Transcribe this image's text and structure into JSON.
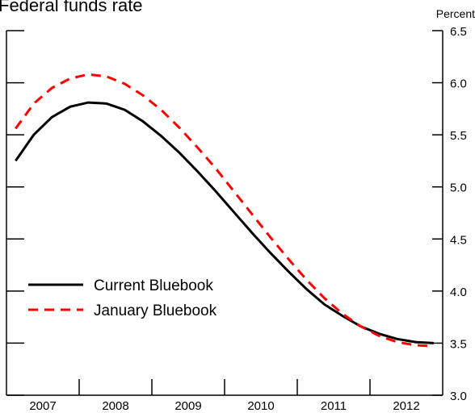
{
  "chart_data": {
    "type": "line",
    "title": "Federal funds rate",
    "y_unit_label": "Percent",
    "x": [
      2007.125,
      2007.375,
      2007.625,
      2007.875,
      2008.125,
      2008.375,
      2008.625,
      2008.875,
      2009.125,
      2009.375,
      2009.625,
      2009.875,
      2010.125,
      2010.375,
      2010.625,
      2010.875,
      2011.125,
      2011.375,
      2011.625,
      2011.875,
      2012.125,
      2012.375,
      2012.625,
      2012.875
    ],
    "xlim": [
      2007,
      2013
    ],
    "xticks": [
      {
        "value": 2007.5,
        "label": "2007"
      },
      {
        "value": 2008.5,
        "label": "2008"
      },
      {
        "value": 2009.5,
        "label": "2009"
      },
      {
        "value": 2010.5,
        "label": "2010"
      },
      {
        "value": 2011.5,
        "label": "2011"
      },
      {
        "value": 2012.5,
        "label": "2012"
      }
    ],
    "ylim": [
      3.0,
      6.5
    ],
    "yticks": [
      {
        "value": 3.0,
        "label": "3.0"
      },
      {
        "value": 3.5,
        "label": "3.5"
      },
      {
        "value": 4.0,
        "label": "4.0"
      },
      {
        "value": 4.5,
        "label": "4.5"
      },
      {
        "value": 5.0,
        "label": "5.0"
      },
      {
        "value": 5.5,
        "label": "5.5"
      },
      {
        "value": 6.0,
        "label": "6.0"
      },
      {
        "value": 6.5,
        "label": "6.5"
      }
    ],
    "series": [
      {
        "name": "Current Bluebook",
        "color": "#000000",
        "dash": false,
        "values": [
          5.25,
          5.5,
          5.67,
          5.77,
          5.81,
          5.8,
          5.74,
          5.63,
          5.49,
          5.33,
          5.15,
          4.96,
          4.76,
          4.56,
          4.37,
          4.19,
          4.02,
          3.87,
          3.76,
          3.66,
          3.59,
          3.54,
          3.51,
          3.5
        ]
      },
      {
        "name": "January Bluebook",
        "color": "#ff0000",
        "dash": true,
        "values": [
          5.56,
          5.8,
          5.95,
          6.04,
          6.08,
          6.06,
          5.99,
          5.88,
          5.74,
          5.57,
          5.38,
          5.18,
          4.96,
          4.74,
          4.52,
          4.31,
          4.11,
          3.93,
          3.78,
          3.66,
          3.57,
          3.51,
          3.48,
          3.47
        ]
      }
    ]
  }
}
